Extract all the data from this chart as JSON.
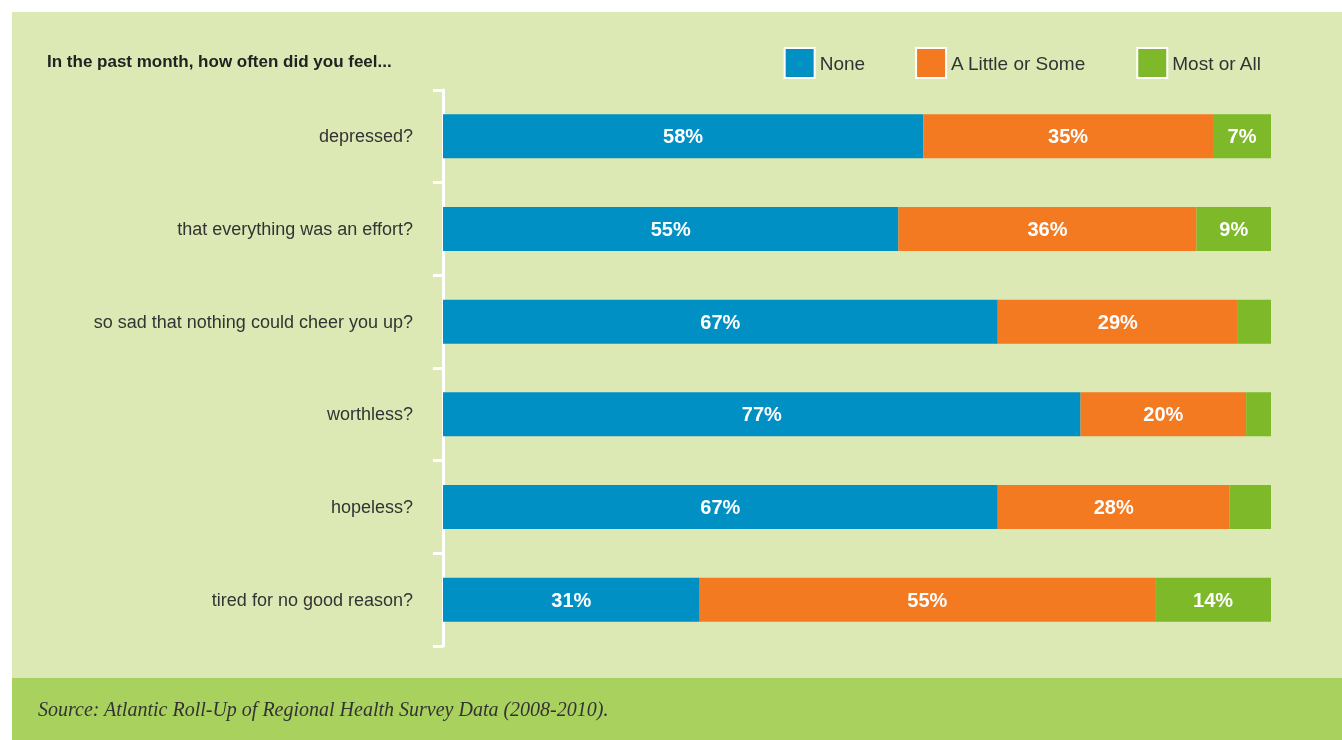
{
  "chart_data": {
    "type": "bar",
    "orientation": "horizontal",
    "stacked": true,
    "title": "In the past month, how often did you feel...",
    "categories": [
      "depressed?",
      "that everything was an effort?",
      "so sad that nothing could cheer you up?",
      "worthless?",
      "hopeless?",
      "tired for no good reason?"
    ],
    "series": [
      {
        "name": "None",
        "color": "#0090c4",
        "values": [
          58,
          55,
          67,
          77,
          67,
          31
        ],
        "value_labels": [
          "58%",
          "55%",
          "67%",
          "77%",
          "67%",
          "31%"
        ]
      },
      {
        "name": "A Little or Some",
        "color": "#f47a22",
        "values": [
          35,
          36,
          29,
          20,
          28,
          55
        ],
        "value_labels": [
          "35%",
          "36%",
          "29%",
          "20%",
          "28%",
          "55%"
        ]
      },
      {
        "name": "Most or All",
        "color": "#7db928",
        "values": [
          7,
          9,
          4,
          3,
          5,
          14
        ],
        "value_labels": [
          "7%",
          "9%",
          null,
          null,
          null,
          "14%"
        ]
      }
    ],
    "xlim": [
      0,
      100
    ],
    "tick_labels": "y",
    "legend": "top right",
    "annotations": [
      "Source: Atlantic Roll-Up of Regional Health Survey Data (2008-2010)."
    ]
  }
}
